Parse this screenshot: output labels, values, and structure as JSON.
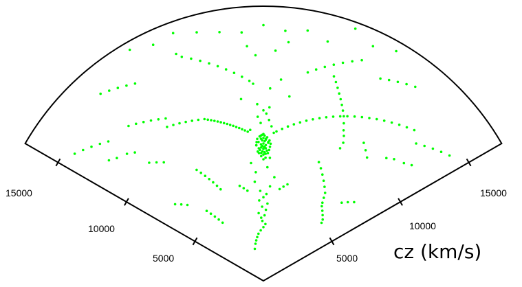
{
  "chart_data": {
    "type": "scatter",
    "title": "",
    "axis_label": "cz (km/s)",
    "tick_labels": [
      "5000",
      "10000",
      "15000"
    ],
    "tick_values": [
      5000,
      10000,
      15000
    ],
    "r_max": 17400,
    "angle_range_deg": [
      -60,
      60
    ],
    "grid": false,
    "point_color": "#00ff00",
    "line_color": "#000000",
    "points": [
      [
        4000,
        -2
      ],
      [
        4150,
        1
      ],
      [
        4300,
        -4
      ],
      [
        4500,
        2
      ],
      [
        4700,
        -1
      ],
      [
        4900,
        3
      ],
      [
        5100,
        -3
      ],
      [
        5300,
        0
      ],
      [
        5500,
        2
      ],
      [
        5700,
        -2
      ],
      [
        3200,
        -3
      ],
      [
        3400,
        0
      ],
      [
        3600,
        2
      ],
      [
        3800,
        -1
      ],
      [
        2100,
        -15
      ],
      [
        2400,
        -12
      ],
      [
        2600,
        -10
      ],
      [
        2800,
        -8
      ],
      [
        3000,
        -6
      ],
      [
        6000,
        4
      ],
      [
        6300,
        -5
      ],
      [
        6600,
        6
      ],
      [
        6900,
        -4
      ],
      [
        7200,
        2
      ],
      [
        7500,
        -6
      ],
      [
        7800,
        3
      ],
      [
        8100,
        -2
      ],
      [
        8400,
        0
      ],
      [
        8600,
        -3
      ],
      [
        8800,
        2
      ],
      [
        9000,
        1
      ],
      [
        9200,
        -1
      ],
      [
        9400,
        4
      ],
      [
        9600,
        -5
      ],
      [
        9800,
        3
      ],
      [
        10000,
        -1
      ],
      [
        10200,
        2
      ],
      [
        10400,
        -2
      ],
      [
        10600,
        1
      ],
      [
        10800,
        0
      ],
      [
        11000,
        2
      ],
      [
        11200,
        -2
      ],
      [
        7700,
        0
      ],
      [
        7800,
        1
      ],
      [
        7900,
        -1
      ],
      [
        8000,
        0
      ],
      [
        8050,
        1
      ],
      [
        8100,
        -1
      ],
      [
        8150,
        0.5
      ],
      [
        8200,
        -0.5
      ],
      [
        8250,
        1.5
      ],
      [
        8300,
        -1.5
      ],
      [
        8350,
        0
      ],
      [
        8400,
        1
      ],
      [
        8450,
        -1
      ],
      [
        8500,
        0.5
      ],
      [
        8550,
        -0.5
      ],
      [
        8600,
        1
      ],
      [
        8650,
        -1
      ],
      [
        8700,
        0
      ],
      [
        8750,
        2
      ],
      [
        8800,
        -2
      ],
      [
        8850,
        0.5
      ],
      [
        8900,
        -0.5
      ],
      [
        8950,
        1
      ],
      [
        9000,
        -1
      ],
      [
        9050,
        0
      ],
      [
        9100,
        1.5
      ],
      [
        9150,
        -1.5
      ],
      [
        9200,
        0.5
      ],
      [
        9250,
        -0.5
      ],
      [
        9300,
        0
      ],
      [
        8100,
        2
      ],
      [
        8200,
        -2.5
      ],
      [
        8300,
        2.5
      ],
      [
        8400,
        -2
      ],
      [
        8500,
        2.8
      ],
      [
        8600,
        -3
      ],
      [
        8700,
        3
      ],
      [
        8800,
        -2.8
      ],
      [
        8900,
        2.5
      ],
      [
        9000,
        -2.5
      ],
      [
        9500,
        -6
      ],
      [
        9600,
        -7
      ],
      [
        9700,
        -8
      ],
      [
        9800,
        -9
      ],
      [
        9900,
        -10
      ],
      [
        10000,
        -11
      ],
      [
        10100,
        -12
      ],
      [
        10200,
        -13
      ],
      [
        10300,
        -14
      ],
      [
        10400,
        -15
      ],
      [
        10500,
        -16
      ],
      [
        10600,
        -17
      ],
      [
        10700,
        -18
      ],
      [
        10800,
        -19
      ],
      [
        10900,
        -20
      ],
      [
        11000,
        -22
      ],
      [
        11100,
        -24
      ],
      [
        11200,
        -26
      ],
      [
        11300,
        -28
      ],
      [
        11400,
        -30
      ],
      [
        11500,
        -32
      ],
      [
        9500,
        5
      ],
      [
        9700,
        7
      ],
      [
        9900,
        9
      ],
      [
        10100,
        11
      ],
      [
        10300,
        13
      ],
      [
        10500,
        15
      ],
      [
        10700,
        17
      ],
      [
        10900,
        19
      ],
      [
        11100,
        21
      ],
      [
        11300,
        23
      ],
      [
        11500,
        25
      ],
      [
        11700,
        27
      ],
      [
        11900,
        29
      ],
      [
        12100,
        31
      ],
      [
        12300,
        33
      ],
      [
        12000,
        -31
      ],
      [
        12200,
        -33
      ],
      [
        12400,
        -35
      ],
      [
        12600,
        -37
      ],
      [
        12800,
        -39
      ],
      [
        13000,
        -41
      ],
      [
        12500,
        35
      ],
      [
        12700,
        37
      ],
      [
        12900,
        39
      ],
      [
        13100,
        41
      ],
      [
        13300,
        43
      ],
      [
        13500,
        45
      ],
      [
        9700,
        30
      ],
      [
        10100,
        30
      ],
      [
        10500,
        29
      ],
      [
        10800,
        28
      ],
      [
        11200,
        27
      ],
      [
        11600,
        26
      ],
      [
        11900,
        25
      ],
      [
        12200,
        24
      ],
      [
        12500,
        23
      ],
      [
        12800,
        22
      ],
      [
        13100,
        21
      ],
      [
        13400,
        20
      ],
      [
        13700,
        19
      ],
      [
        8300,
        25
      ],
      [
        8000,
        27
      ],
      [
        7700,
        29
      ],
      [
        7400,
        31
      ],
      [
        7100,
        33
      ],
      [
        6800,
        35
      ],
      [
        6500,
        36
      ],
      [
        6200,
        37
      ],
      [
        6000,
        38
      ],
      [
        5800,
        40
      ],
      [
        5600,
        42
      ],
      [
        5400,
        44
      ],
      [
        5200,
        45
      ],
      [
        12700,
        -4
      ],
      [
        13000,
        -6
      ],
      [
        13300,
        -8
      ],
      [
        13600,
        -10
      ],
      [
        13900,
        -12
      ],
      [
        14200,
        -14
      ],
      [
        14500,
        -16
      ],
      [
        14800,
        -18
      ],
      [
        15100,
        -20
      ],
      [
        15400,
        -21
      ],
      [
        13500,
        12
      ],
      [
        13800,
        14
      ],
      [
        14100,
        16
      ],
      [
        14400,
        18
      ],
      [
        14700,
        20
      ],
      [
        15000,
        22
      ],
      [
        15300,
        24
      ],
      [
        6400,
        -25
      ],
      [
        6700,
        -26
      ],
      [
        7000,
        -27
      ],
      [
        7300,
        -28
      ],
      [
        7600,
        -29
      ],
      [
        7900,
        -30
      ],
      [
        8200,
        -31
      ],
      [
        4500,
        -35
      ],
      [
        4800,
        -36
      ],
      [
        5100,
        -37
      ],
      [
        5400,
        -38
      ],
      [
        5700,
        -39
      ],
      [
        16000,
        -10
      ],
      [
        15800,
        -5
      ],
      [
        16200,
        0
      ],
      [
        15900,
        5
      ],
      [
        16100,
        10
      ],
      [
        15700,
        15
      ],
      [
        16300,
        -15
      ],
      [
        14900,
        -33
      ],
      [
        15100,
        -35
      ],
      [
        15300,
        -37
      ],
      [
        15500,
        -39
      ],
      [
        15700,
        -41
      ],
      [
        14800,
        30
      ],
      [
        15000,
        32
      ],
      [
        15200,
        34
      ],
      [
        15400,
        36
      ],
      [
        15600,
        38
      ],
      [
        13200,
        -48
      ],
      [
        13500,
        -50
      ],
      [
        13800,
        -52
      ],
      [
        14100,
        -54
      ],
      [
        14400,
        -56
      ],
      [
        13000,
        48
      ],
      [
        13300,
        50
      ],
      [
        13600,
        52
      ],
      [
        13900,
        54
      ],
      [
        14200,
        56
      ],
      [
        16500,
        -25
      ],
      [
        16700,
        -20
      ],
      [
        16900,
        -30
      ],
      [
        16400,
        25
      ],
      [
        16800,
        30
      ],
      [
        17000,
        20
      ],
      [
        11500,
        -45
      ],
      [
        11800,
        -47
      ],
      [
        12100,
        -50
      ],
      [
        12400,
        -52
      ],
      [
        11000,
        45
      ],
      [
        11300,
        47
      ],
      [
        11600,
        50
      ],
      [
        11900,
        52
      ],
      [
        7000,
        45
      ],
      [
        7300,
        47
      ],
      [
        7600,
        49
      ],
      [
        6800,
        -45
      ],
      [
        7100,
        -47
      ],
      [
        7400,
        -49
      ],
      [
        10200,
        40
      ],
      [
        10500,
        38
      ],
      [
        10800,
        36
      ],
      [
        9800,
        -40
      ],
      [
        10100,
        -42
      ],
      [
        10400,
        -44
      ],
      [
        14300,
        -2
      ],
      [
        14600,
        3
      ],
      [
        14900,
        -4
      ],
      [
        15200,
        6
      ],
      [
        12200,
        2
      ],
      [
        12500,
        -3
      ],
      [
        12800,
        5
      ],
      [
        11800,
        8
      ],
      [
        11600,
        -7
      ],
      [
        5900,
        10
      ],
      [
        6100,
        12
      ],
      [
        6300,
        14
      ],
      [
        5800,
        -10
      ],
      [
        6000,
        -12
      ],
      [
        6200,
        -14
      ]
    ]
  }
}
